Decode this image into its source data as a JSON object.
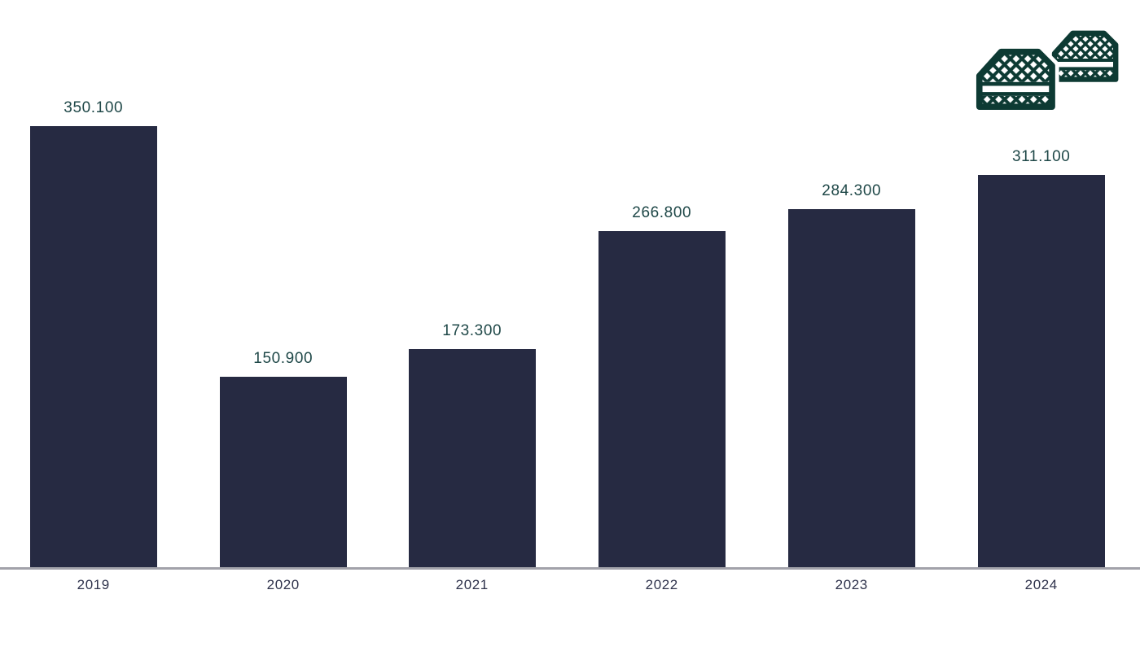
{
  "page": {
    "background_color": "#ffffff"
  },
  "icon": {
    "name": "stacked-crates-icon",
    "color": "#0d3a33"
  },
  "chart_data": {
    "type": "bar",
    "categories": [
      "2019",
      "2020",
      "2021",
      "2022",
      "2023",
      "2024"
    ],
    "values": [
      350100,
      150900,
      173300,
      266800,
      284300,
      311100
    ],
    "value_labels": [
      "350.100",
      "150.900",
      "173.300",
      "266.800",
      "284.300",
      "311.100"
    ],
    "title": "",
    "xlabel": "",
    "ylabel": "",
    "ylim": [
      0,
      350100
    ],
    "grid": false,
    "legend": false,
    "bar_color": "#262a42",
    "value_label_color": "#1f4848",
    "category_label_color": "#2e324b",
    "axis_line_color": "#a2a2aa"
  }
}
